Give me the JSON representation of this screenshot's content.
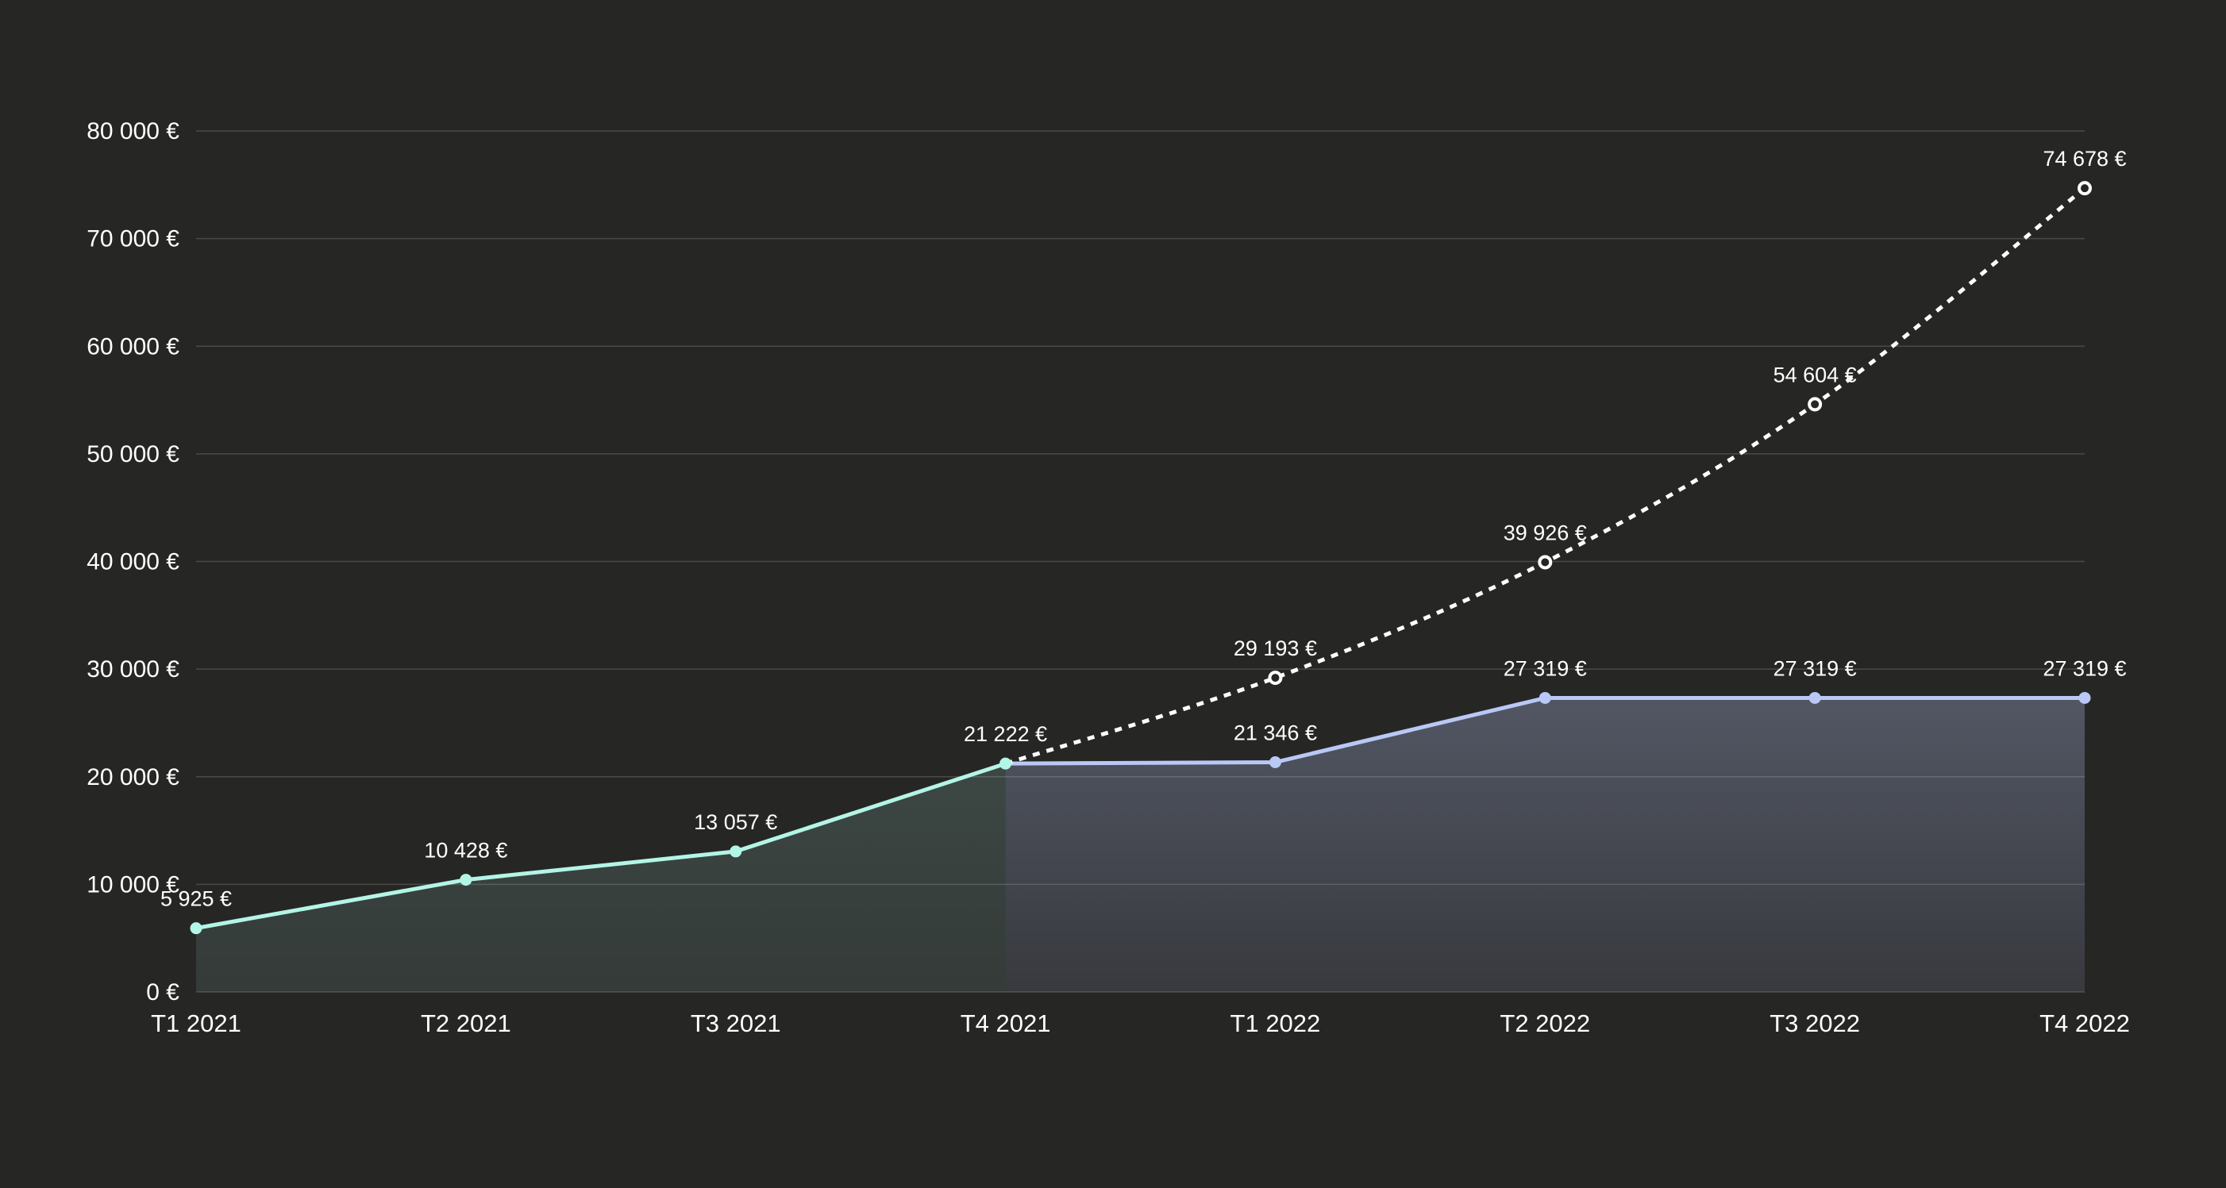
{
  "colors": {
    "background": "#262625",
    "grid": "#4a4a48",
    "actual": "#b3f5e6",
    "forecast": "#b9c8f5",
    "projection": "#ffffff",
    "text": "#ffffff"
  },
  "chart_data": {
    "type": "line",
    "categories": [
      "T1 2021",
      "T2 2021",
      "T3 2021",
      "T4 2021",
      "T1 2022",
      "T2 2022",
      "T3 2022",
      "T4 2022"
    ],
    "yticks": [
      "0 €",
      "10 000 €",
      "20 000 €",
      "30 000 €",
      "40 000 €",
      "50 000 €",
      "60 000 €",
      "70 000 €",
      "80 000 €"
    ],
    "ylim": [
      0,
      80000
    ],
    "grid": true,
    "series": [
      {
        "key": "actual",
        "style": "solid-area",
        "x": [
          "T1 2021",
          "T2 2021",
          "T3 2021",
          "T4 2021"
        ],
        "values": [
          5925,
          10428,
          13057,
          21222
        ],
        "labels": [
          "5 925 €",
          "10 428 €",
          "13 057 €",
          "21 222 €"
        ]
      },
      {
        "key": "forecast",
        "style": "solid-area",
        "x": [
          "T4 2021",
          "T1 2022",
          "T2 2022",
          "T3 2022",
          "T4 2022"
        ],
        "values": [
          21222,
          21346,
          27319,
          27319,
          27319
        ],
        "labels": [
          "",
          "21 346 €",
          "27 319 €",
          "27 319 €",
          "27 319 €"
        ]
      },
      {
        "key": "projection",
        "style": "dotted",
        "x": [
          "T4 2021",
          "T1 2022",
          "T2 2022",
          "T3 2022",
          "T4 2022"
        ],
        "values": [
          21222,
          29193,
          39926,
          54604,
          74678
        ],
        "labels": [
          "",
          "29 193 €",
          "39 926 €",
          "54 604 €",
          "74 678 €"
        ]
      }
    ]
  }
}
